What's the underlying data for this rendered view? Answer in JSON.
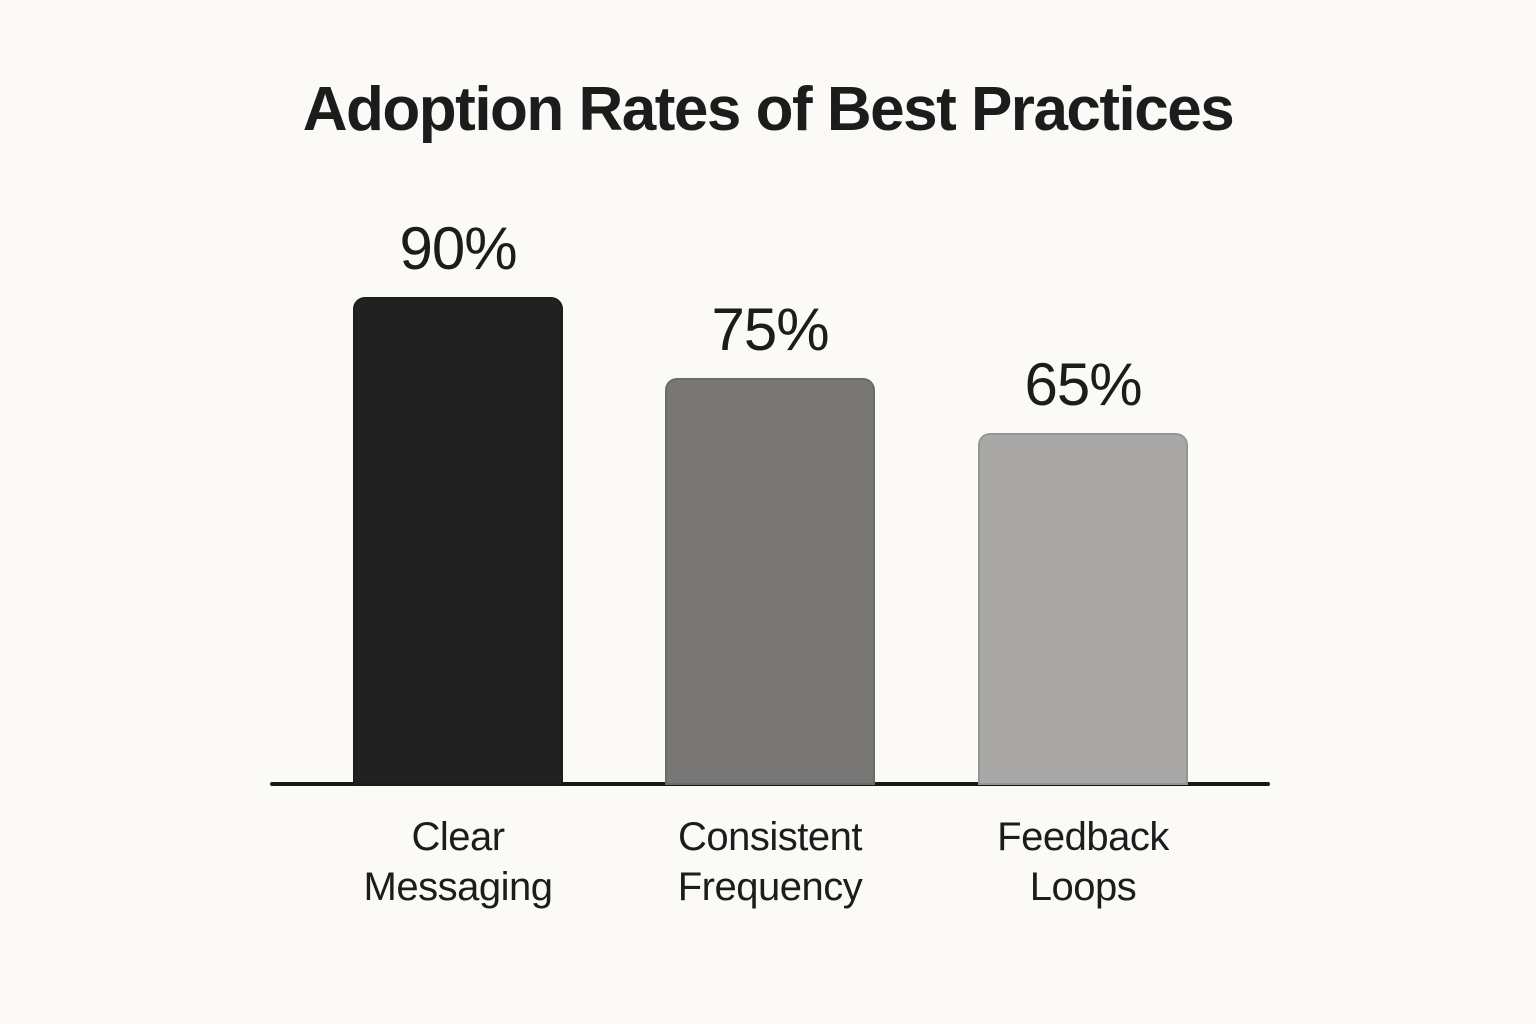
{
  "chart_data": {
    "type": "bar",
    "title": "Adoption Rates of Best Practices",
    "categories": [
      "Clear Messaging",
      "Consistent Frequency",
      "Feedback Loops"
    ],
    "values": [
      90,
      75,
      65
    ],
    "value_labels": [
      "90%",
      "75%",
      "65%"
    ],
    "xlabel": "",
    "ylabel": "",
    "ylim": [
      0,
      100
    ],
    "grid": false,
    "legend": false,
    "colors": {
      "background": "#fbfaf7",
      "text": "#1c1c1c",
      "axis": "#161616",
      "bars": [
        "#212121",
        "#787776",
        "#a9a8a7"
      ]
    }
  }
}
